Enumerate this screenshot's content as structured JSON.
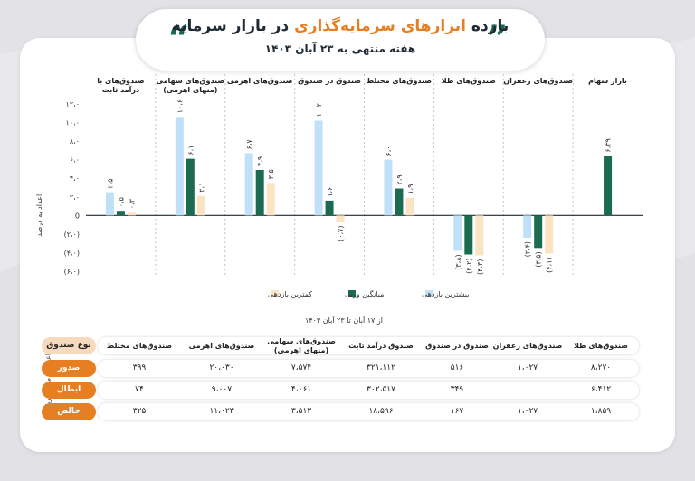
{
  "header": {
    "title_before": "بازده",
    "title_highlight": "ابزارهای سرمایه‌گذاری",
    "title_after": "در بازار سرمایه",
    "subtitle": "هفته منتهی به ۲۳ آبان ۱۴۰۳"
  },
  "colors": {
    "highest": "#bfe0f7",
    "average": "#1a6b50",
    "lowest": "#fbe4c4",
    "accent": "#e67e22",
    "axis": "#1f2a36"
  },
  "chart_data": {
    "type": "bar",
    "ylabel": "اعداد به درصد",
    "ylim": [
      -6,
      12
    ],
    "yticks": [
      12,
      10,
      8,
      6,
      4,
      2,
      0,
      -2,
      -4,
      -6
    ],
    "ytick_labels": [
      "۱۲،۰",
      "۱۰،۰",
      "۸،۰",
      "۶،۰",
      "۴،۰",
      "۲،۰",
      "0",
      "(۲،۰)",
      "(۴،۰)",
      "(۶،۰)"
    ],
    "categories": [
      "بازار سهام",
      "صندوق‌های زعفران",
      "صندوق‌های طلا",
      "صندوق‌های مختلط",
      "صندوق در صندوق",
      "صندوق‌های اهرمی",
      "صندوق‌های سهامی (منهای اهرمی)",
      "صندوق‌های با درآمد ثابت"
    ],
    "series": [
      {
        "name": "بیشترین بازدهی",
        "values": [
          null,
          -2.4,
          -3.8,
          6.0,
          10.2,
          6.7,
          10.6,
          2.5
        ],
        "labels": [
          "",
          "(۲،۴)",
          "(۳،۸)",
          "۶،۰",
          "۱۰،۲",
          "۶،۷",
          "۱۰،۶",
          "۲،۵"
        ]
      },
      {
        "name": "میانگین وزنی",
        "values": [
          6.39,
          -3.5,
          -4.2,
          2.9,
          1.6,
          4.9,
          6.1,
          0.5
        ],
        "labels": [
          "۶،۳۹",
          "(۳،۵)",
          "(۴،۲)",
          "۲،۹",
          "۱،۶",
          "۴،۹",
          "۶،۱",
          "۰،۵"
        ]
      },
      {
        "name": "کمترین بازدهی",
        "values": [
          null,
          -4.1,
          -4.3,
          1.9,
          -0.7,
          3.5,
          2.1,
          0.3
        ],
        "labels": [
          "",
          "(۴،۱)",
          "(۴،۳)",
          "۱،۹",
          "(۰،۷)",
          "۳،۵",
          "۲،۱",
          "۰،۳"
        ]
      }
    ],
    "legend_position": "bottom",
    "grid": false
  },
  "table": {
    "subtitle": "از ۱۷ آبان تا ۲۳ آبان ۱۴۰۳",
    "unit_label": "(اعداد به میلیارد ریال)",
    "header_label": "نوع صندوق",
    "columns": [
      "صندوق‌های طلا",
      "صندوق‌های زعفران",
      "صندوق در صندوق",
      "صندوق درآمد ثابت",
      "صندوق‌های سهامی (منهای اهرمی)",
      "صندوق‌های اهرمی",
      "صندوق‌های مختلط"
    ],
    "rows": [
      {
        "label": "صدور",
        "values": [
          "۸،۲۷۰",
          "۱،۰۲۷",
          "۵۱۶",
          "۳۲۱،۱۱۲",
          "۷،۵۷۴",
          "۲۰،۰۳۰",
          "۳۹۹"
        ]
      },
      {
        "label": "ابطال",
        "values": [
          "۶،۴۱۲",
          "",
          "۳۴۹",
          "۳۰۲،۵۱۷",
          "۴،۰۶۱",
          "۹،۰۰۷",
          "۷۴"
        ]
      },
      {
        "label": "خالص",
        "values": [
          "۱،۸۵۹",
          "۱،۰۲۷",
          "۱۶۷",
          "۱۸،۵۹۶",
          "۳،۵۱۳",
          "۱۱،۰۲۳",
          "۳۲۵"
        ]
      }
    ]
  }
}
